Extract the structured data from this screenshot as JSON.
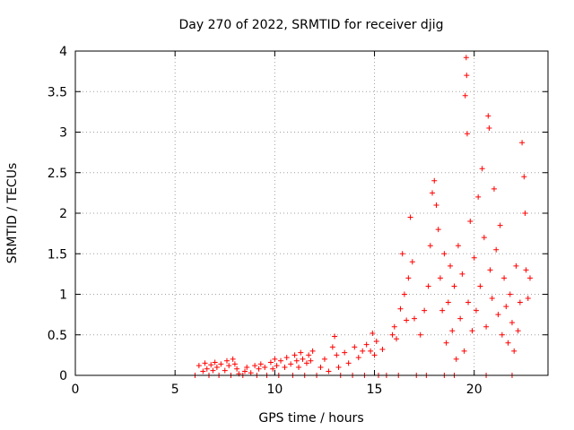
{
  "chart_data": {
    "type": "scatter",
    "title": "Day 270 of 2022, SRMTID for receiver djig",
    "xlabel": "GPS time / hours",
    "ylabel": "SRMTID / TECUs",
    "xlim": [
      0,
      23.7
    ],
    "ylim": [
      0,
      4
    ],
    "xticks": [
      "0",
      "5",
      "10",
      "15",
      "20"
    ],
    "yticks": [
      "0",
      "0.5",
      "1",
      "1.5",
      "2",
      "2.5",
      "3",
      "3.5",
      "4"
    ],
    "grid": true,
    "marker": "plus",
    "color": "#ff0000",
    "series": [
      {
        "name": "SRMTID",
        "points": [
          [
            6.0,
            0.0
          ],
          [
            6.2,
            0.12
          ],
          [
            6.4,
            0.05
          ],
          [
            6.5,
            0.15
          ],
          [
            6.6,
            0.08
          ],
          [
            6.7,
            0.0
          ],
          [
            6.8,
            0.13
          ],
          [
            6.9,
            0.06
          ],
          [
            7.0,
            0.16
          ],
          [
            7.1,
            0.1
          ],
          [
            7.2,
            0.0
          ],
          [
            7.3,
            0.14
          ],
          [
            7.5,
            0.06
          ],
          [
            7.6,
            0.18
          ],
          [
            7.7,
            0.12
          ],
          [
            7.8,
            0.0
          ],
          [
            7.9,
            0.2
          ],
          [
            8.0,
            0.14
          ],
          [
            8.1,
            0.08
          ],
          [
            8.2,
            0.02
          ],
          [
            8.4,
            0.0
          ],
          [
            8.5,
            0.05
          ],
          [
            8.6,
            0.1
          ],
          [
            8.8,
            0.03
          ],
          [
            9.0,
            0.12
          ],
          [
            9.1,
            0.0
          ],
          [
            9.2,
            0.08
          ],
          [
            9.3,
            0.14
          ],
          [
            9.5,
            0.1
          ],
          [
            9.6,
            0.0
          ],
          [
            9.8,
            0.16
          ],
          [
            9.9,
            0.08
          ],
          [
            10.0,
            0.2
          ],
          [
            10.1,
            0.12
          ],
          [
            10.2,
            0.0
          ],
          [
            10.3,
            0.18
          ],
          [
            10.5,
            0.1
          ],
          [
            10.6,
            0.22
          ],
          [
            10.8,
            0.14
          ],
          [
            10.9,
            0.0
          ],
          [
            11.0,
            0.25
          ],
          [
            11.1,
            0.18
          ],
          [
            11.2,
            0.1
          ],
          [
            11.3,
            0.28
          ],
          [
            11.4,
            0.2
          ],
          [
            11.5,
            0.0
          ],
          [
            11.6,
            0.15
          ],
          [
            11.7,
            0.25
          ],
          [
            11.8,
            0.18
          ],
          [
            11.9,
            0.3
          ],
          [
            12.1,
            0.0
          ],
          [
            12.3,
            0.1
          ],
          [
            12.5,
            0.2
          ],
          [
            12.7,
            0.05
          ],
          [
            12.9,
            0.35
          ],
          [
            13.0,
            0.48
          ],
          [
            13.1,
            0.25
          ],
          [
            13.2,
            0.1
          ],
          [
            13.3,
            0.0
          ],
          [
            13.5,
            0.28
          ],
          [
            13.7,
            0.15
          ],
          [
            13.9,
            0.0
          ],
          [
            14.0,
            0.35
          ],
          [
            14.2,
            0.22
          ],
          [
            14.4,
            0.3
          ],
          [
            14.5,
            0.0
          ],
          [
            14.6,
            0.38
          ],
          [
            14.8,
            0.3
          ],
          [
            14.9,
            0.52
          ],
          [
            15.0,
            0.25
          ],
          [
            15.1,
            0.42
          ],
          [
            15.2,
            0.0
          ],
          [
            15.4,
            0.32
          ],
          [
            15.6,
            0.0
          ],
          [
            15.9,
            0.5
          ],
          [
            16.0,
            0.6
          ],
          [
            16.1,
            0.45
          ],
          [
            16.2,
            0.0
          ],
          [
            16.3,
            0.82
          ],
          [
            16.4,
            1.5
          ],
          [
            16.5,
            1.0
          ],
          [
            16.6,
            0.68
          ],
          [
            16.7,
            1.2
          ],
          [
            16.8,
            1.95
          ],
          [
            16.9,
            1.4
          ],
          [
            17.0,
            0.7
          ],
          [
            17.1,
            0.0
          ],
          [
            17.3,
            0.5
          ],
          [
            17.5,
            0.8
          ],
          [
            17.7,
            1.1
          ],
          [
            17.8,
            1.6
          ],
          [
            17.9,
            2.25
          ],
          [
            18.0,
            2.4
          ],
          [
            18.1,
            2.1
          ],
          [
            18.2,
            1.8
          ],
          [
            18.3,
            1.2
          ],
          [
            18.4,
            0.8
          ],
          [
            18.5,
            1.5
          ],
          [
            18.6,
            0.4
          ],
          [
            18.7,
            0.9
          ],
          [
            18.8,
            1.35
          ],
          [
            18.9,
            0.55
          ],
          [
            19.0,
            1.1
          ],
          [
            19.1,
            0.2
          ],
          [
            19.2,
            1.6
          ],
          [
            19.3,
            0.7
          ],
          [
            19.4,
            1.25
          ],
          [
            19.5,
            0.3
          ],
          [
            19.55,
            3.45
          ],
          [
            19.6,
            3.92
          ],
          [
            19.62,
            3.7
          ],
          [
            19.65,
            2.98
          ],
          [
            19.7,
            0.9
          ],
          [
            19.8,
            1.9
          ],
          [
            19.9,
            0.55
          ],
          [
            20.0,
            1.45
          ],
          [
            20.1,
            0.8
          ],
          [
            20.2,
            2.2
          ],
          [
            20.3,
            1.1
          ],
          [
            20.4,
            2.55
          ],
          [
            20.5,
            1.7
          ],
          [
            20.6,
            0.6
          ],
          [
            20.7,
            3.2
          ],
          [
            20.75,
            3.05
          ],
          [
            20.8,
            1.3
          ],
          [
            20.9,
            0.95
          ],
          [
            21.0,
            2.3
          ],
          [
            21.1,
            1.55
          ],
          [
            21.2,
            0.75
          ],
          [
            21.3,
            1.85
          ],
          [
            21.4,
            0.5
          ],
          [
            21.5,
            1.2
          ],
          [
            21.6,
            0.85
          ],
          [
            21.7,
            0.4
          ],
          [
            21.8,
            1.0
          ],
          [
            21.9,
            0.65
          ],
          [
            22.0,
            0.3
          ],
          [
            22.1,
            1.35
          ],
          [
            22.2,
            0.55
          ],
          [
            22.3,
            0.9
          ],
          [
            22.4,
            2.87
          ],
          [
            22.5,
            2.45
          ],
          [
            22.55,
            2.0
          ],
          [
            22.6,
            1.3
          ],
          [
            22.7,
            0.95
          ],
          [
            22.8,
            1.2
          ],
          [
            19.0,
            0.0
          ],
          [
            20.6,
            0.0
          ],
          [
            21.9,
            0.0
          ],
          [
            17.6,
            0.0
          ],
          [
            18.5,
            0.0
          ]
        ]
      }
    ]
  }
}
